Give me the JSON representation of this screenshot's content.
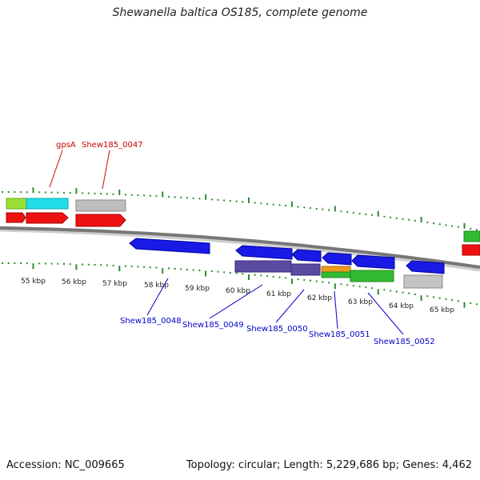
{
  "title": "Shewanella baltica OS185, complete genome",
  "footer": {
    "accession": "Accession: NC_009665",
    "summary": "Topology: circular; Length: 5,229,686 bp; Genes: 4,462"
  },
  "colors": {
    "backbone": "#777777",
    "tick": "#2e8b2e",
    "label_top": "#cc0000",
    "label_bottom": "#0000cc"
  },
  "scale_labels": [
    "55 kbp",
    "56 kbp",
    "57 kbp",
    "58 kbp",
    "59 kbp",
    "60 kbp",
    "61 kbp",
    "62 kbp",
    "63 kbp",
    "64 kbp",
    "65 kbp"
  ],
  "top_labels": [
    "gpsA",
    "Shew185_0047"
  ],
  "bottom_labels": [
    "Shew185_0048",
    "Shew185_0049",
    "Shew185_0050",
    "Shew185_0051",
    "Shew185_0052"
  ]
}
